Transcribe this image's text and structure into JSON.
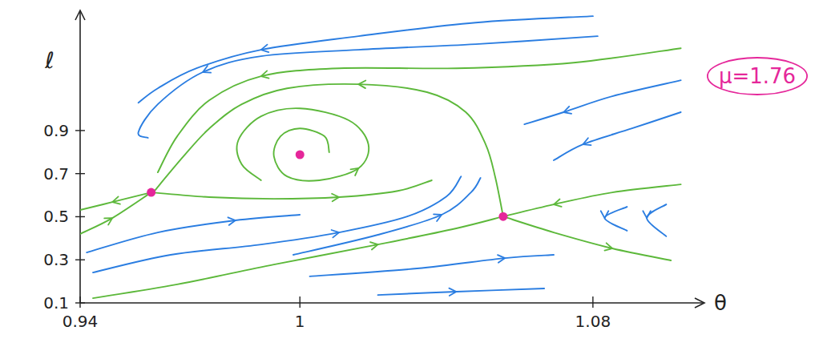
{
  "chart_data": {
    "type": "phase_portrait",
    "x_label": "θ",
    "y_label": "ℓ",
    "annotation": "μ=1.76",
    "xlim": [
      0.94,
      1.11
    ],
    "ylim": [
      0.1,
      1.45
    ],
    "xticks": [
      0.94,
      1,
      1.08
    ],
    "yticks": [
      0.1,
      0.3,
      0.5,
      0.7,
      0.9
    ],
    "grid": false,
    "series": [
      {
        "type": "line",
        "color": "#5cb83a",
        "x": [
          0.9594,
          0.9488,
          0.94
        ],
        "values": [
          0.613,
          0.568,
          0.531
        ]
      },
      {
        "type": "line",
        "color": "#5cb83a",
        "x": [
          0.94,
          0.9488,
          0.9594
        ],
        "values": [
          0.42,
          0.494,
          0.613
        ]
      },
      {
        "type": "line",
        "color": "#5cb83a",
        "x": [
          0.9594,
          0.9753,
          0.9929,
          1.0107,
          1.0267,
          1.036
        ],
        "values": [
          0.613,
          0.591,
          0.583,
          0.591,
          0.62,
          0.669
        ]
      },
      {
        "type": "line",
        "color": "#5cb83a",
        "x": [
          1.008,
          1.0067,
          1.0,
          0.9947,
          0.9929,
          0.9965,
          1.0053,
          1.016,
          1.0187,
          1.0133,
          1.0,
          0.9894,
          0.9832,
          0.9841,
          0.9894
        ],
        "values": [
          0.799,
          0.873,
          0.91,
          0.873,
          0.78,
          0.687,
          0.669,
          0.725,
          0.836,
          0.948,
          1.003,
          0.966,
          0.855,
          0.743,
          0.669
        ]
      },
      {
        "type": "line",
        "color": "#5cb83a",
        "x": [
          1.0555,
          1.0533,
          1.0507,
          1.0453,
          1.0347,
          1.016,
          0.9965,
          0.9841,
          0.9753,
          0.9682,
          0.9603
        ],
        "values": [
          0.501,
          0.687,
          0.836,
          0.985,
          1.078,
          1.115,
          1.096,
          1.022,
          0.91,
          0.78,
          0.62
        ]
      },
      {
        "type": "line",
        "color": "#5cb83a",
        "x": [
          1.104,
          1.0747,
          1.0427,
          1.0107,
          0.9894,
          0.9753,
          0.9665,
          0.9612
        ],
        "values": [
          1.282,
          1.215,
          1.189,
          1.189,
          1.152,
          1.041,
          0.873,
          0.706
        ]
      },
      {
        "type": "line",
        "color": "#5cb83a",
        "x": [
          1.104,
          1.0853,
          1.0693,
          1.0555
        ],
        "values": [
          0.65,
          0.613,
          0.557,
          0.501
        ]
      },
      {
        "type": "line",
        "color": "#5cb83a",
        "x": [
          1.0555,
          1.0693,
          1.0853,
          1.1013
        ],
        "values": [
          0.501,
          0.427,
          0.353,
          0.297
        ]
      },
      {
        "type": "line",
        "color": "#5cb83a",
        "x": [
          0.9435,
          0.9665,
          0.9929,
          1.0213,
          1.0427,
          1.0555
        ],
        "values": [
          0.122,
          0.186,
          0.278,
          0.371,
          0.446,
          0.501
        ]
      },
      {
        "type": "line",
        "color": "#2a7de1",
        "x": [
          1.08,
          1.048,
          1.016,
          0.9894,
          0.9718,
          0.9612,
          0.9559
        ],
        "values": [
          1.431,
          1.401,
          1.338,
          1.275,
          1.189,
          1.096,
          1.029
        ]
      },
      {
        "type": "line",
        "color": "#2a7de1",
        "x": [
          1.0813,
          1.048,
          1.016,
          0.9894,
          0.9735,
          0.9612,
          0.9559,
          0.9585
        ],
        "values": [
          1.338,
          1.301,
          1.275,
          1.245,
          1.171,
          1.022,
          0.892,
          0.866
        ]
      },
      {
        "type": "line",
        "color": "#2a7de1",
        "x": [
          1.104,
          1.0853,
          1.072,
          1.0613
        ],
        "values": [
          1.133,
          1.059,
          0.985,
          0.929
        ]
      },
      {
        "type": "line",
        "color": "#2a7de1",
        "x": [
          1.104,
          1.0907,
          1.0773,
          1.0693
        ],
        "values": [
          0.985,
          0.91,
          0.836,
          0.762
        ]
      },
      {
        "type": "line",
        "color": "#2a7de1",
        "x": [
          1.0893,
          1.0832,
          1.0893
        ],
        "values": [
          0.546,
          0.494,
          0.435
        ]
      },
      {
        "type": "line",
        "color": "#2a7de1",
        "x": [
          1.1,
          1.0947,
          1.1
        ],
        "values": [
          0.557,
          0.494,
          0.409
        ]
      },
      {
        "type": "line",
        "color": "#2a7de1",
        "x": [
          0.9418,
          0.9612,
          0.9824,
          1.0
        ],
        "values": [
          0.334,
          0.427,
          0.483,
          0.509
        ]
      },
      {
        "type": "line",
        "color": "#2a7de1",
        "x": [
          0.9435,
          0.9647,
          0.9894,
          1.0107,
          1.0293,
          1.04,
          1.044
        ],
        "values": [
          0.241,
          0.323,
          0.371,
          0.427,
          0.501,
          0.594,
          0.687
        ]
      },
      {
        "type": "line",
        "color": "#2a7de1",
        "x": [
          0.9982,
          1.0213,
          1.0387,
          1.0467,
          1.0493
        ],
        "values": [
          0.323,
          0.416,
          0.509,
          0.613,
          0.68
        ]
      },
      {
        "type": "line",
        "color": "#2a7de1",
        "x": [
          1.0027,
          1.032,
          1.056,
          1.0693
        ],
        "values": [
          0.223,
          0.26,
          0.308,
          0.323
        ]
      },
      {
        "type": "line",
        "color": "#2a7de1",
        "x": [
          1.0213,
          1.0427,
          1.0667
        ],
        "values": [
          0.137,
          0.152,
          0.167
        ]
      },
      {
        "type": "scatter",
        "color": "#e5279a",
        "marker": "circle",
        "x": [
          0.9594,
          1.0,
          1.0555
        ],
        "values": [
          0.613,
          0.788,
          0.501
        ]
      }
    ]
  }
}
